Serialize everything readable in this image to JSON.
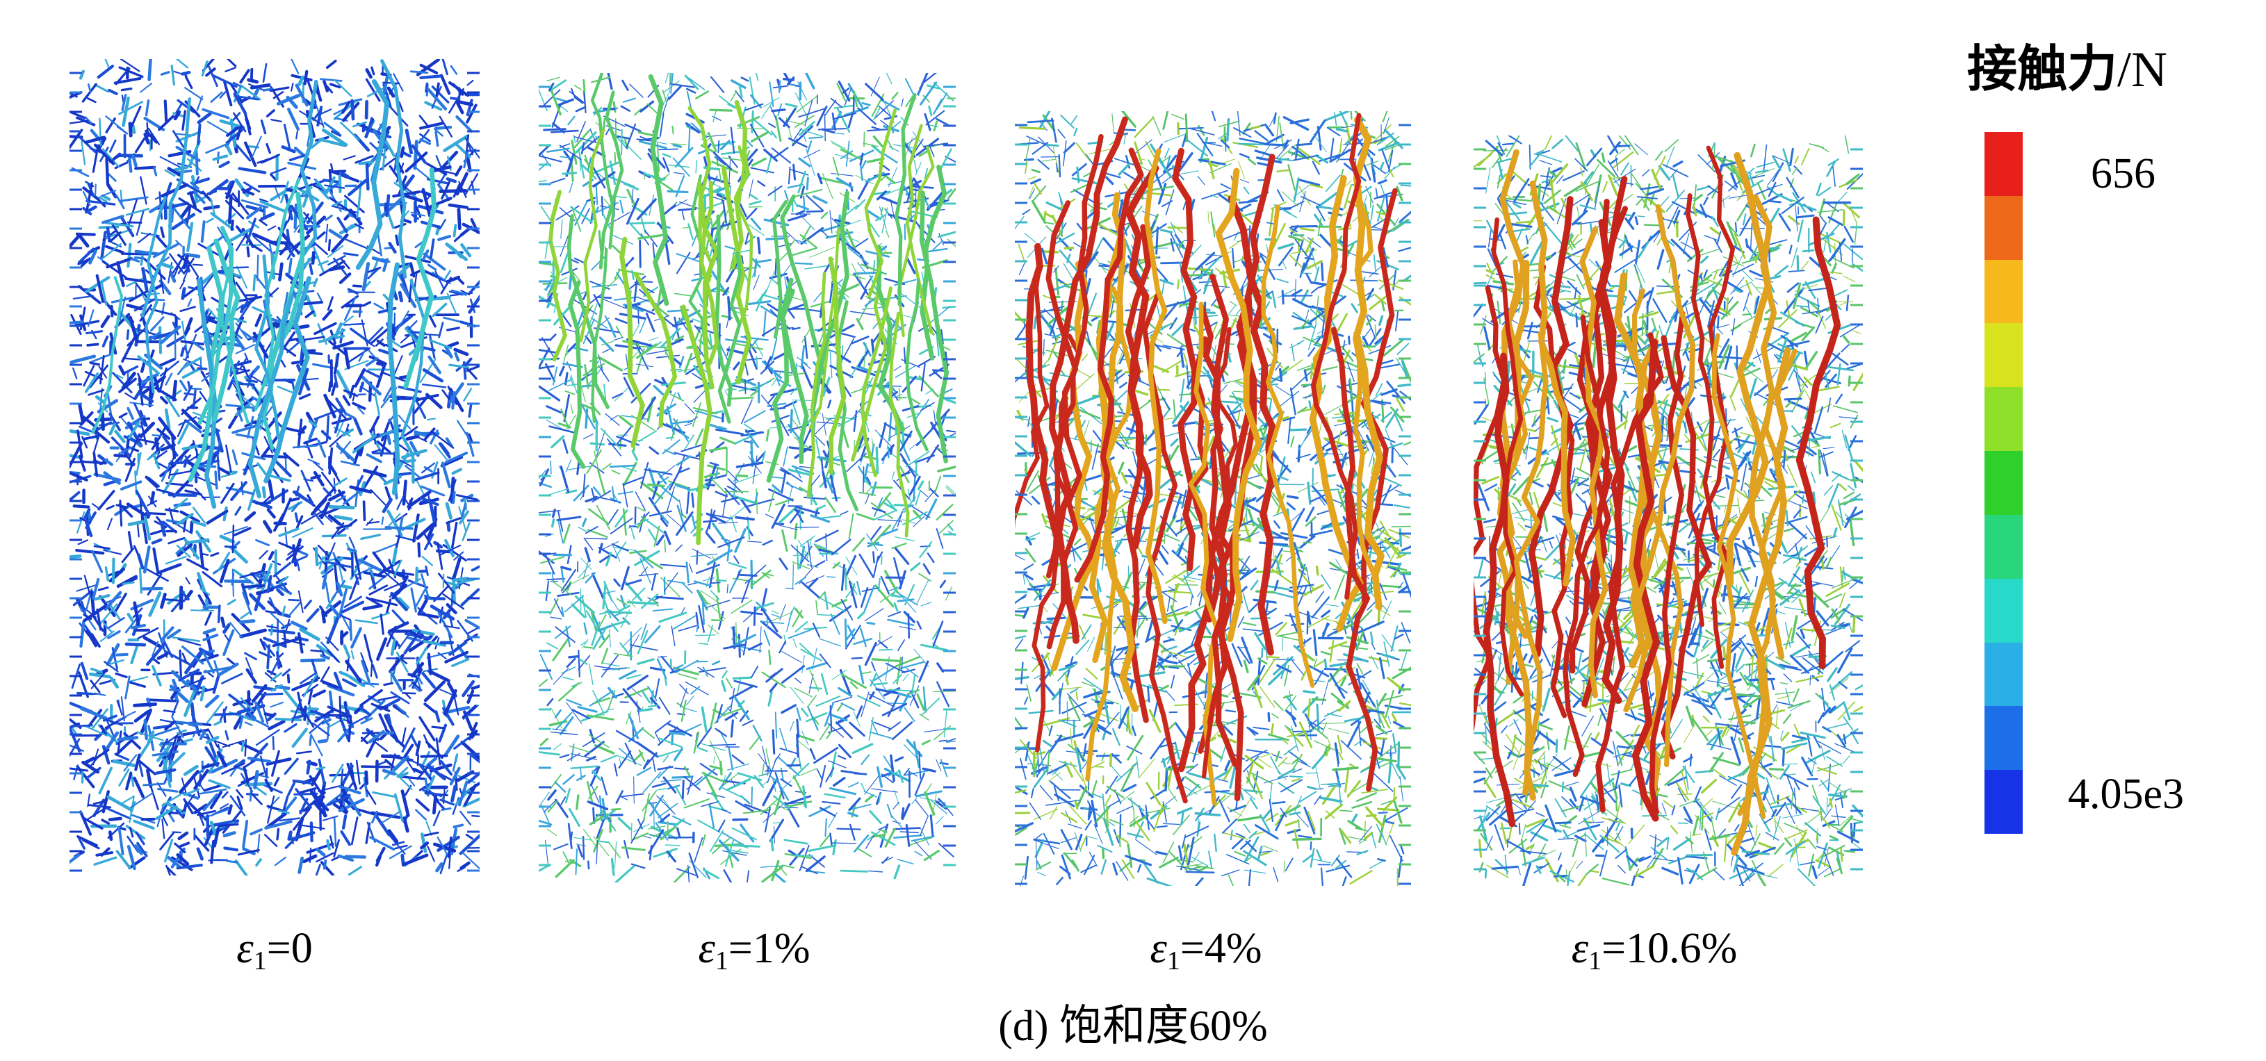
{
  "panels": [
    {
      "label_var": "ε",
      "label_sub": "1",
      "label_value": "=0",
      "state": "low-force-blue",
      "palette": [
        "#1537c8",
        "#1b4fd6",
        "#2a78e0",
        "#36a9d8",
        "#3fc7c9",
        "#5bd36b"
      ]
    },
    {
      "label_var": "ε",
      "label_sub": "1",
      "label_value": "=1%",
      "state": "mixed-cyan-green",
      "palette": [
        "#2a5fd6",
        "#39a6dc",
        "#44c9c2",
        "#5ac96a",
        "#8fd438",
        "#e2c51f"
      ]
    },
    {
      "label_var": "ε",
      "label_sub": "1",
      "label_value": "=4%",
      "state": "force-chains-red",
      "palette": [
        "#2a6fd9",
        "#3fb8c8",
        "#58c468",
        "#9bd03a",
        "#e3a41e",
        "#c9291c"
      ]
    },
    {
      "label_var": "ε",
      "label_sub": "1",
      "label_value": "=10.6%",
      "state": "force-chains-red",
      "palette": [
        "#2a6fd9",
        "#40bac6",
        "#5bc46a",
        "#9ccf3c",
        "#e0a020",
        "#c4241a"
      ]
    }
  ],
  "caption": "(d) 饱和度60%",
  "legend": {
    "title": "接触力",
    "unit": "/N",
    "max_label": "656",
    "min_label": "4.05e3",
    "colors": [
      "#e8201c",
      "#ee6a1a",
      "#f7b81b",
      "#d8e21e",
      "#8ee02a",
      "#2fcf2c",
      "#28d67c",
      "#28d9c9",
      "#2aaee6",
      "#1c6fe8",
      "#1733e8"
    ]
  }
}
